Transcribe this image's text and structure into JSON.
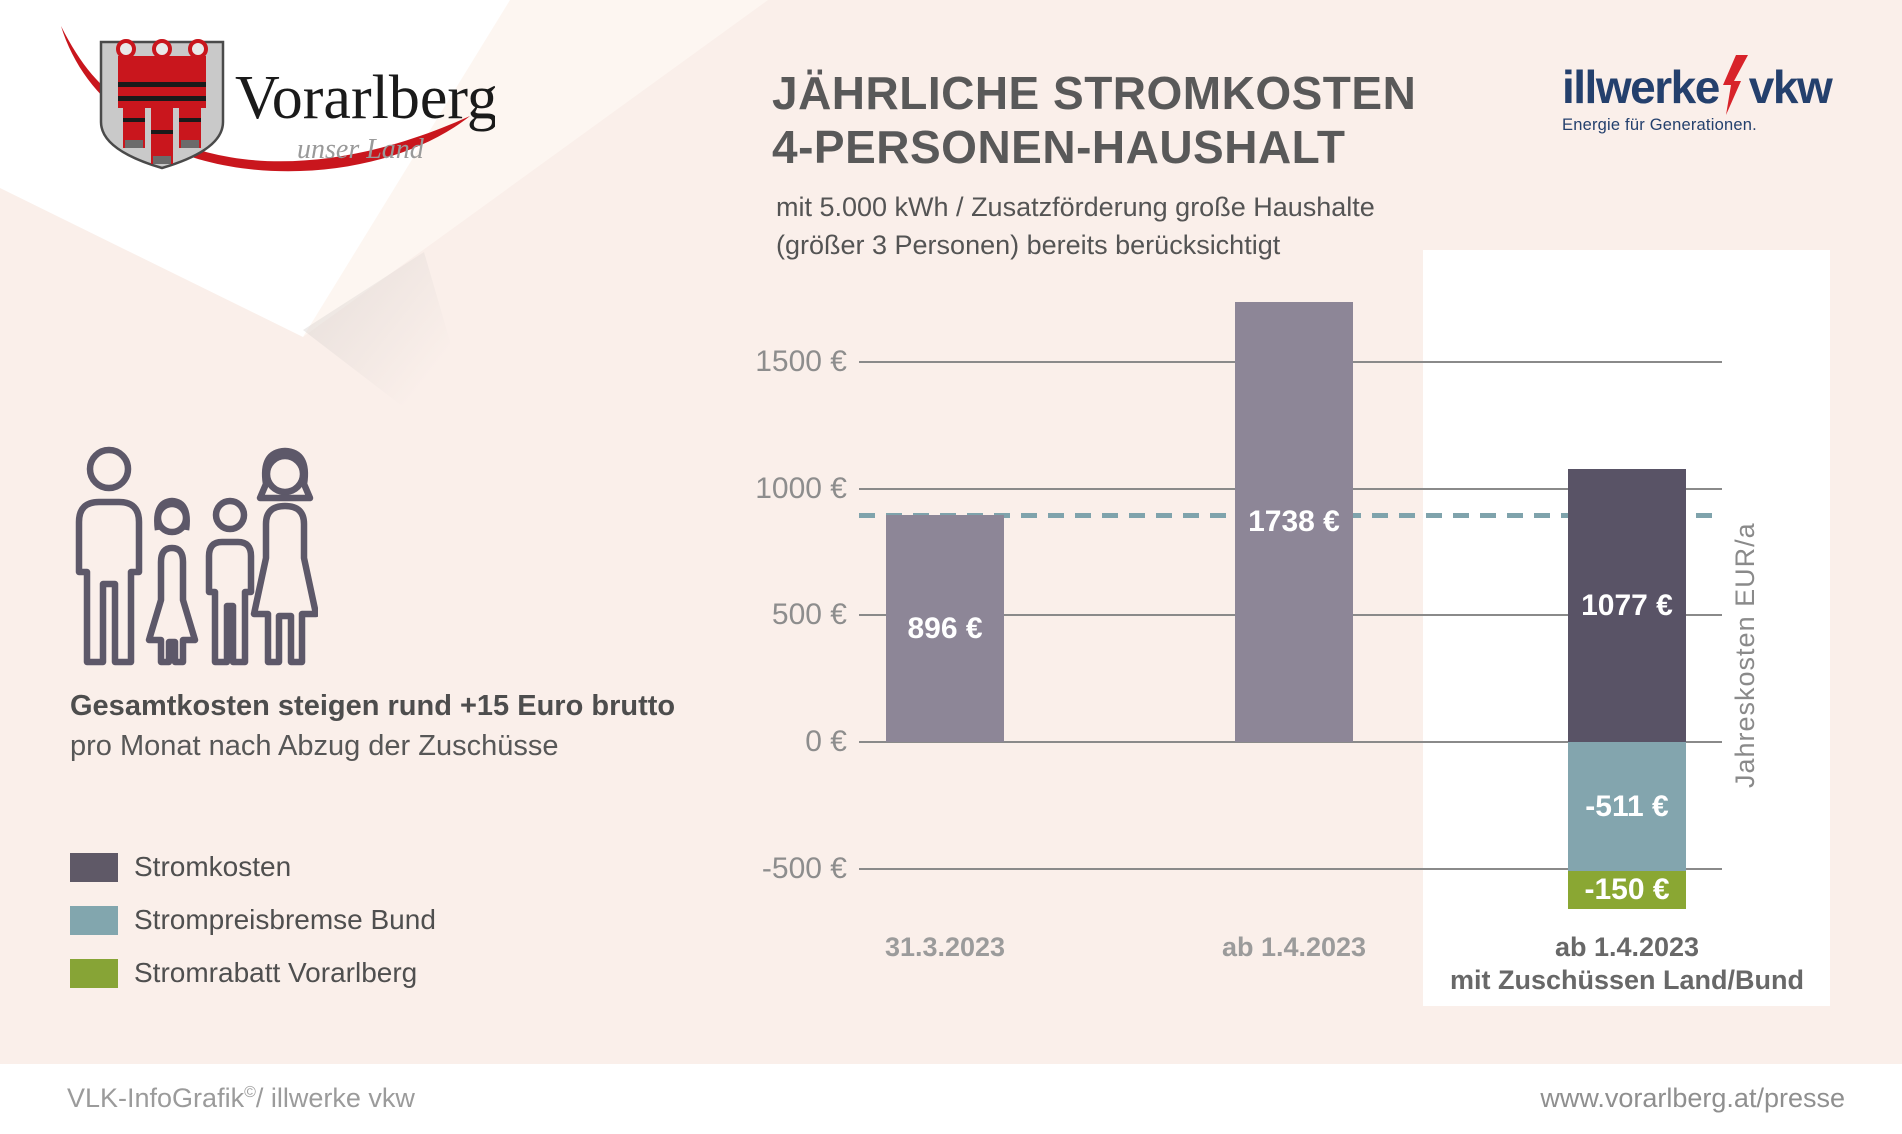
{
  "header": {
    "title_line1": "JÄHRLICHE STROMKOSTEN",
    "title_line2": "4-PERSONEN-HAUSHALT",
    "subtitle_line1": "mit 5.000 kWh / Zusatzförderung große Haushalte",
    "subtitle_line2": "(größer 3 Personen) bereits berücksichtigt"
  },
  "logos": {
    "vorarlberg": {
      "wordmark": "Vorarlberg",
      "tagline": "unser Land"
    },
    "illwerke": {
      "word1": "illwerke",
      "word2": "vkw",
      "tagline": "Energie für Generationen."
    }
  },
  "left_panel": {
    "note_bold": "Gesamtkosten steigen rund +15 Euro brutto",
    "note_regular": "pro Monat nach Abzug der Zuschüsse",
    "legend": [
      {
        "label": "Stromkosten",
        "color": "#5f5967"
      },
      {
        "label": "Strompreisbremse Bund",
        "color": "#82a6ae"
      },
      {
        "label": "Stromrabatt Vorarlberg",
        "color": "#87a436"
      }
    ]
  },
  "chart_data": {
    "type": "bar",
    "title": "Jährliche Stromkosten 4-Personen-Haushalt",
    "ylabel": "Jahreskosten EUR/a",
    "ylim": [
      -700,
      1950
    ],
    "grid": true,
    "axis_ticks": [
      {
        "value": 1500,
        "label": "1500 €"
      },
      {
        "value": 1000,
        "label": "1000 €"
      },
      {
        "value": 500,
        "label": "500 €"
      },
      {
        "value": 0,
        "label": "0 €"
      },
      {
        "value": -500,
        "label": "-500 €"
      }
    ],
    "dashed_reference_value": 896,
    "colors": {
      "stromkosten_light": "#8d8697",
      "stromkosten_dark": "#595366",
      "bund": "#83a5ae",
      "vorarlberg": "#8aa733",
      "dashed_line": "#7fa3ac"
    },
    "bars": [
      {
        "category_lines": [
          "31.3.2023"
        ],
        "highlight": false,
        "segments": [
          {
            "name": "Stromkosten",
            "value": 896,
            "label": "896 €",
            "color_key": "stromkosten_light"
          }
        ]
      },
      {
        "category_lines": [
          "ab 1.4.2023"
        ],
        "highlight": false,
        "segments": [
          {
            "name": "Stromkosten",
            "value": 1738,
            "label": "1738 €",
            "color_key": "stromkosten_light"
          }
        ]
      },
      {
        "category_lines": [
          "ab 1.4.2023",
          "mit Zuschüssen Land/Bund"
        ],
        "highlight": true,
        "segments": [
          {
            "name": "Stromkosten",
            "value": 1077,
            "label": "1077 €",
            "color_key": "stromkosten_dark"
          },
          {
            "name": "Strompreisbremse Bund",
            "value": -511,
            "label": "-511 €",
            "color_key": "bund"
          },
          {
            "name": "Stromrabatt Vorarlberg",
            "value": -150,
            "label": "-150 €",
            "color_key": "vorarlberg"
          }
        ]
      }
    ]
  },
  "footer": {
    "left_pre": "VLK-InfoGrafik",
    "left_sup": "©",
    "left_post": "/ illwerke vkw",
    "right": "www.vorarlberg.at/presse"
  }
}
